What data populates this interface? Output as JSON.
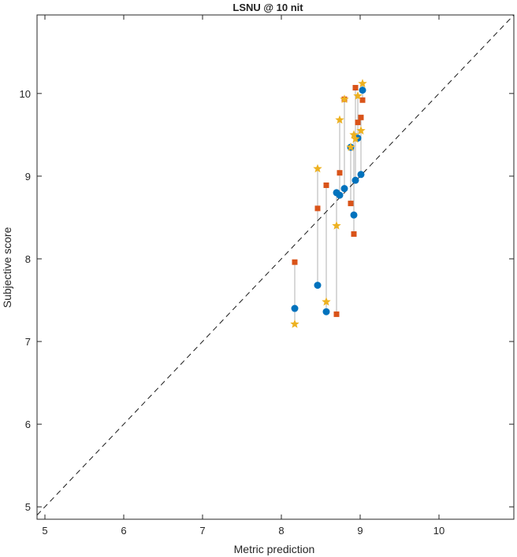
{
  "chart_data": {
    "type": "scatter",
    "title": "LSNU @ 10 nit",
    "xlabel": "Metric prediction",
    "ylabel": "Subjective score",
    "xlim": [
      4.9,
      10.95
    ],
    "ylim": [
      4.85,
      10.95
    ],
    "xticks": [
      "5",
      "6",
      "7",
      "8",
      "9",
      "10"
    ],
    "yticks": [
      "5",
      "6",
      "7",
      "8",
      "9",
      "10"
    ],
    "grid": false,
    "legend": "none",
    "reference_line": {
      "style": "dashed",
      "from": [
        4.9,
        4.9
      ],
      "to": [
        10.95,
        10.95
      ]
    },
    "series": [
      {
        "marker": "circle",
        "color": "#0072BD",
        "x": [
          8.17,
          8.46,
          8.57,
          8.7,
          8.74,
          8.8,
          8.88,
          8.92,
          8.94,
          8.97,
          9.01,
          9.03
        ],
        "y": [
          7.4,
          7.68,
          7.36,
          8.8,
          8.77,
          8.85,
          9.35,
          8.53,
          8.95,
          9.46,
          9.02,
          10.04
        ]
      },
      {
        "marker": "square",
        "color": "#D95319",
        "x": [
          8.17,
          8.46,
          8.57,
          8.7,
          8.74,
          8.8,
          8.88,
          8.92,
          8.94,
          8.97,
          9.01,
          9.03
        ],
        "y": [
          7.96,
          8.61,
          8.89,
          7.33,
          9.04,
          9.93,
          8.67,
          8.3,
          10.07,
          9.65,
          9.71,
          9.92
        ]
      },
      {
        "marker": "star",
        "color": "#EDB120",
        "x": [
          8.17,
          8.46,
          8.57,
          8.7,
          8.74,
          8.8,
          8.88,
          8.92,
          8.94,
          8.97,
          9.01,
          9.03
        ],
        "y": [
          7.21,
          9.09,
          7.48,
          8.4,
          9.68,
          9.93,
          9.35,
          9.5,
          9.45,
          9.97,
          9.55,
          10.12
        ]
      }
    ],
    "connector_color": "#b0b0b0"
  }
}
